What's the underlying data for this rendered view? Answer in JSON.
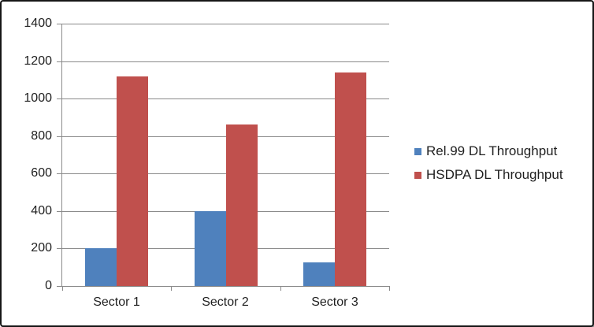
{
  "chart_data": {
    "type": "bar",
    "title": "",
    "xlabel": "",
    "ylabel": "",
    "categories": [
      "Sector 1",
      "Sector 2",
      "Sector 3"
    ],
    "series": [
      {
        "name": "Rel.99 DL Throughput",
        "color": "#4F81BD",
        "values": [
          200,
          400,
          125
        ]
      },
      {
        "name": "HSDPA DL Throughput",
        "color": "#C0504D",
        "values": [
          1120,
          860,
          1140
        ]
      }
    ],
    "ylim": [
      0,
      1400
    ],
    "ytick_step": 200,
    "ytick_labels": [
      "0",
      "200",
      "400",
      "600",
      "800",
      "1000",
      "1200",
      "1400"
    ],
    "grid": true,
    "legend_position": "right",
    "colors": {
      "gridline": "#8A8A8A",
      "axis": "#8A8A8A",
      "text": "#1F1F1F",
      "frame_border": "#161616",
      "background": "#FFFFFF"
    }
  }
}
